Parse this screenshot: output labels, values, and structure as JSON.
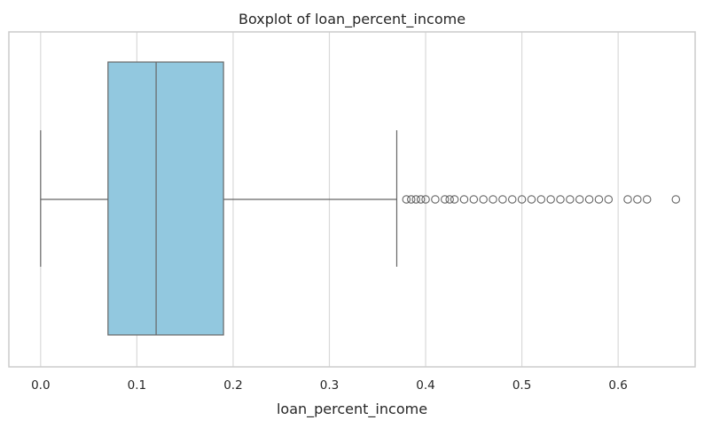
{
  "chart_data": {
    "type": "boxplot",
    "title": "Boxplot of loan_percent_income",
    "xlabel": "loan_percent_income",
    "ylabel": "",
    "orientation": "horizontal",
    "xlim": [
      -0.033,
      0.68
    ],
    "xticks": [
      0.0,
      0.1,
      0.2,
      0.3,
      0.4,
      0.5,
      0.6
    ],
    "xtick_labels": [
      "0.0",
      "0.1",
      "0.2",
      "0.3",
      "0.4",
      "0.5",
      "0.6"
    ],
    "grid": true,
    "box": {
      "whisker_low": 0.0,
      "q1": 0.07,
      "median": 0.12,
      "q3": 0.19,
      "whisker_high": 0.37
    },
    "outliers": [
      0.38,
      0.385,
      0.39,
      0.395,
      0.4,
      0.41,
      0.42,
      0.425,
      0.43,
      0.44,
      0.45,
      0.46,
      0.47,
      0.48,
      0.49,
      0.5,
      0.51,
      0.52,
      0.53,
      0.54,
      0.55,
      0.56,
      0.57,
      0.58,
      0.59,
      0.61,
      0.62,
      0.63,
      0.66
    ],
    "colors": {
      "box_fill": "#92c8df",
      "line": "#666666",
      "grid": "#d9d9d9",
      "frame": "#cccccc"
    }
  }
}
